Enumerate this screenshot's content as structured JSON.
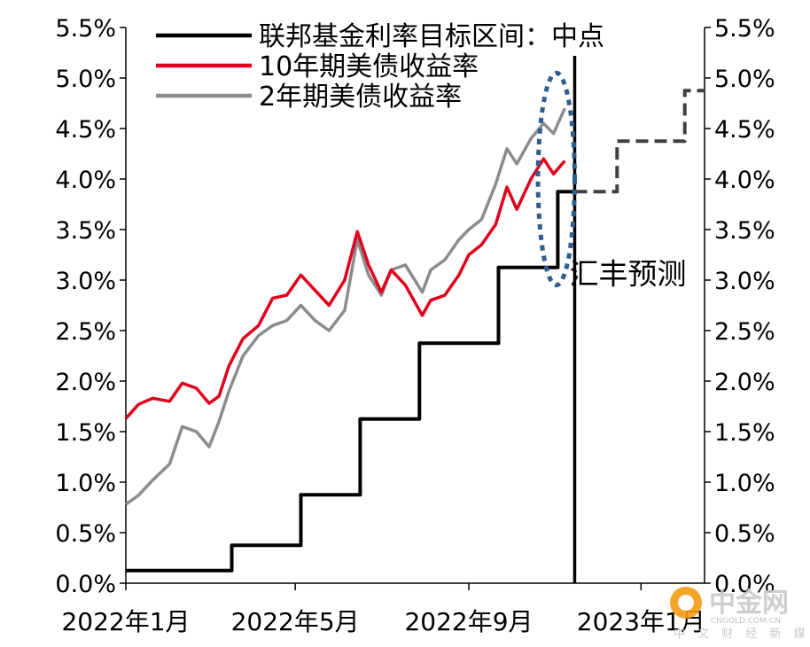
{
  "chart_data": {
    "type": "line",
    "x_axis": {
      "ticks": [
        "2022年1月",
        "2022年5月",
        "2022年9月",
        "2023年1月"
      ],
      "tick_dates": [
        "2022-01-01",
        "2022-05-01",
        "2022-09-01",
        "2023-01-01"
      ],
      "range": [
        "2022-01-01",
        "2023-02-15"
      ]
    },
    "y_axis_left": {
      "ticks": [
        "0.0%",
        "0.5%",
        "1.0%",
        "1.5%",
        "2.0%",
        "2.5%",
        "3.0%",
        "3.5%",
        "4.0%",
        "4.5%",
        "5.0%",
        "5.5%"
      ],
      "range": [
        0,
        5.5
      ],
      "unit": "%"
    },
    "y_axis_right": {
      "ticks": [
        "0.0%",
        "0.5%",
        "1.0%",
        "1.5%",
        "2.0%",
        "2.5%",
        "3.0%",
        "3.5%",
        "4.0%",
        "4.5%",
        "5.0%",
        "5.5%"
      ],
      "range": [
        0,
        5.5
      ],
      "unit": "%"
    },
    "grid": false,
    "legend_position": "top",
    "series": [
      {
        "name": "联邦基金利率目标区间：中点",
        "color": "#000000",
        "style": "step",
        "points": [
          [
            "2022-01-01",
            0.125
          ],
          [
            "2022-03-17",
            0.125
          ],
          [
            "2022-03-17",
            0.375
          ],
          [
            "2022-05-05",
            0.375
          ],
          [
            "2022-05-05",
            0.875
          ],
          [
            "2022-06-16",
            0.875
          ],
          [
            "2022-06-16",
            1.625
          ],
          [
            "2022-07-28",
            1.625
          ],
          [
            "2022-07-28",
            2.375
          ],
          [
            "2022-09-22",
            2.375
          ],
          [
            "2022-09-22",
            3.125
          ],
          [
            "2022-11-03",
            3.125
          ],
          [
            "2022-11-03",
            3.875
          ],
          [
            "2022-11-15",
            3.875
          ]
        ]
      },
      {
        "name": "汇丰预测",
        "color": "#404040",
        "style": "dashed-step",
        "points": [
          [
            "2022-11-15",
            3.875
          ],
          [
            "2022-12-15",
            3.875
          ],
          [
            "2022-12-15",
            4.375
          ],
          [
            "2023-02-01",
            4.375
          ],
          [
            "2023-02-01",
            4.875
          ],
          [
            "2023-02-15",
            4.875
          ]
        ]
      },
      {
        "name": "10年期美债收益率",
        "color": "#e0001b",
        "style": "line",
        "points": [
          [
            "2022-01-01",
            1.63
          ],
          [
            "2022-01-10",
            1.77
          ],
          [
            "2022-01-20",
            1.83
          ],
          [
            "2022-02-01",
            1.8
          ],
          [
            "2022-02-10",
            1.98
          ],
          [
            "2022-02-20",
            1.93
          ],
          [
            "2022-03-01",
            1.78
          ],
          [
            "2022-03-08",
            1.85
          ],
          [
            "2022-03-15",
            2.15
          ],
          [
            "2022-03-25",
            2.42
          ],
          [
            "2022-04-05",
            2.55
          ],
          [
            "2022-04-15",
            2.82
          ],
          [
            "2022-04-25",
            2.85
          ],
          [
            "2022-05-05",
            3.05
          ],
          [
            "2022-05-15",
            2.9
          ],
          [
            "2022-05-25",
            2.75
          ],
          [
            "2022-06-05",
            3.0
          ],
          [
            "2022-06-14",
            3.48
          ],
          [
            "2022-06-22",
            3.15
          ],
          [
            "2022-07-01",
            2.88
          ],
          [
            "2022-07-08",
            3.1
          ],
          [
            "2022-07-18",
            2.95
          ],
          [
            "2022-07-30",
            2.65
          ],
          [
            "2022-08-05",
            2.8
          ],
          [
            "2022-08-15",
            2.85
          ],
          [
            "2022-08-25",
            3.05
          ],
          [
            "2022-09-01",
            3.25
          ],
          [
            "2022-09-10",
            3.35
          ],
          [
            "2022-09-20",
            3.55
          ],
          [
            "2022-09-28",
            3.92
          ],
          [
            "2022-10-05",
            3.7
          ],
          [
            "2022-10-15",
            4.0
          ],
          [
            "2022-10-24",
            4.2
          ],
          [
            "2022-10-31",
            4.05
          ],
          [
            "2022-11-08",
            4.18
          ]
        ]
      },
      {
        "name": "2年期美债收益率",
        "color": "#8c8c8c",
        "style": "line",
        "points": [
          [
            "2022-01-01",
            0.78
          ],
          [
            "2022-01-10",
            0.87
          ],
          [
            "2022-01-20",
            1.02
          ],
          [
            "2022-02-01",
            1.18
          ],
          [
            "2022-02-10",
            1.55
          ],
          [
            "2022-02-20",
            1.5
          ],
          [
            "2022-03-01",
            1.35
          ],
          [
            "2022-03-08",
            1.6
          ],
          [
            "2022-03-15",
            1.9
          ],
          [
            "2022-03-25",
            2.25
          ],
          [
            "2022-04-05",
            2.45
          ],
          [
            "2022-04-15",
            2.55
          ],
          [
            "2022-04-25",
            2.6
          ],
          [
            "2022-05-05",
            2.75
          ],
          [
            "2022-05-15",
            2.6
          ],
          [
            "2022-05-25",
            2.5
          ],
          [
            "2022-06-05",
            2.7
          ],
          [
            "2022-06-14",
            3.4
          ],
          [
            "2022-06-22",
            3.05
          ],
          [
            "2022-07-01",
            2.85
          ],
          [
            "2022-07-08",
            3.1
          ],
          [
            "2022-07-18",
            3.15
          ],
          [
            "2022-07-30",
            2.88
          ],
          [
            "2022-08-05",
            3.1
          ],
          [
            "2022-08-15",
            3.2
          ],
          [
            "2022-08-25",
            3.4
          ],
          [
            "2022-09-01",
            3.5
          ],
          [
            "2022-09-10",
            3.6
          ],
          [
            "2022-09-20",
            3.95
          ],
          [
            "2022-09-28",
            4.3
          ],
          [
            "2022-10-05",
            4.15
          ],
          [
            "2022-10-15",
            4.4
          ],
          [
            "2022-10-24",
            4.55
          ],
          [
            "2022-10-31",
            4.45
          ],
          [
            "2022-11-08",
            4.7
          ]
        ]
      }
    ],
    "legend": [
      {
        "label": "联邦基金利率目标区间：中点",
        "color": "#000000"
      },
      {
        "label": "10年期美债收益率",
        "color": "#e0001b"
      },
      {
        "label": "2年期美债收益率",
        "color": "#8c8c8c"
      }
    ],
    "annotations": [
      {
        "text": "汇丰预测",
        "type": "label",
        "marker": "vertical-line",
        "date": "2022-11-15"
      },
      {
        "type": "dotted-ellipse",
        "color": "#2e5e8c",
        "x_range": [
          "2022-10-20",
          "2022-11-15"
        ],
        "y_range": [
          2.95,
          5.05
        ]
      }
    ]
  },
  "watermark": {
    "name": "中金网",
    "domain": "CNGOLD.COM.CN",
    "tagline": "中 文 财 经 新 媒 体",
    "logo_color": "#f39c12"
  }
}
